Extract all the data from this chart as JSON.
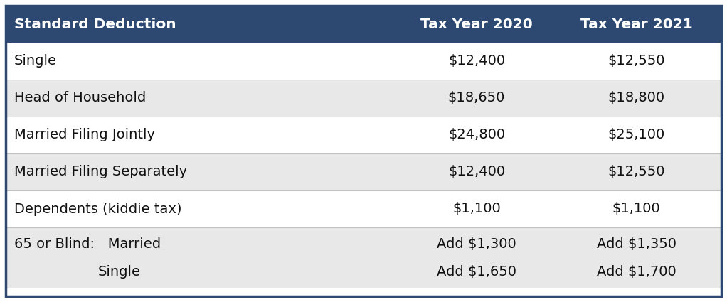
{
  "title": "Standard Deduction",
  "col2_header": "Tax Year 2020",
  "col3_header": "Tax Year 2021",
  "header_bg": "#2E4971",
  "header_text_color": "#FFFFFF",
  "row_bg_white": "#FFFFFF",
  "row_bg_gray": "#E8E8E8",
  "border_color": "#2E4971",
  "text_color": "#111111",
  "rows": [
    {
      "label": "Single",
      "col2": "$12,400",
      "col3": "$12,550",
      "bg": "#FFFFFF"
    },
    {
      "label": "Head of Household",
      "col2": "$18,650",
      "col3": "$18,800",
      "bg": "#E8E8E8"
    },
    {
      "label": "Married Filing Jointly",
      "col2": "$24,800",
      "col3": "$25,100",
      "bg": "#FFFFFF"
    },
    {
      "label": "Married Filing Separately",
      "col2": "$12,400",
      "col3": "$12,550",
      "bg": "#E8E8E8"
    },
    {
      "label": "Dependents (kiddie tax)",
      "col2": "$1,100",
      "col3": "$1,100",
      "bg": "#FFFFFF"
    },
    {
      "label": "65 or Blind:   Married",
      "label2": "Single",
      "col2": "Add $1,300",
      "col2b": "Add $1,650",
      "col3": "Add $1,350",
      "col3b": "Add $1,700",
      "bg": "#E8E8E8",
      "double": true
    }
  ],
  "header_fontsize": 14.5,
  "body_fontsize": 14,
  "fig_width": 10.22,
  "fig_height": 4.25,
  "dpi": 100
}
